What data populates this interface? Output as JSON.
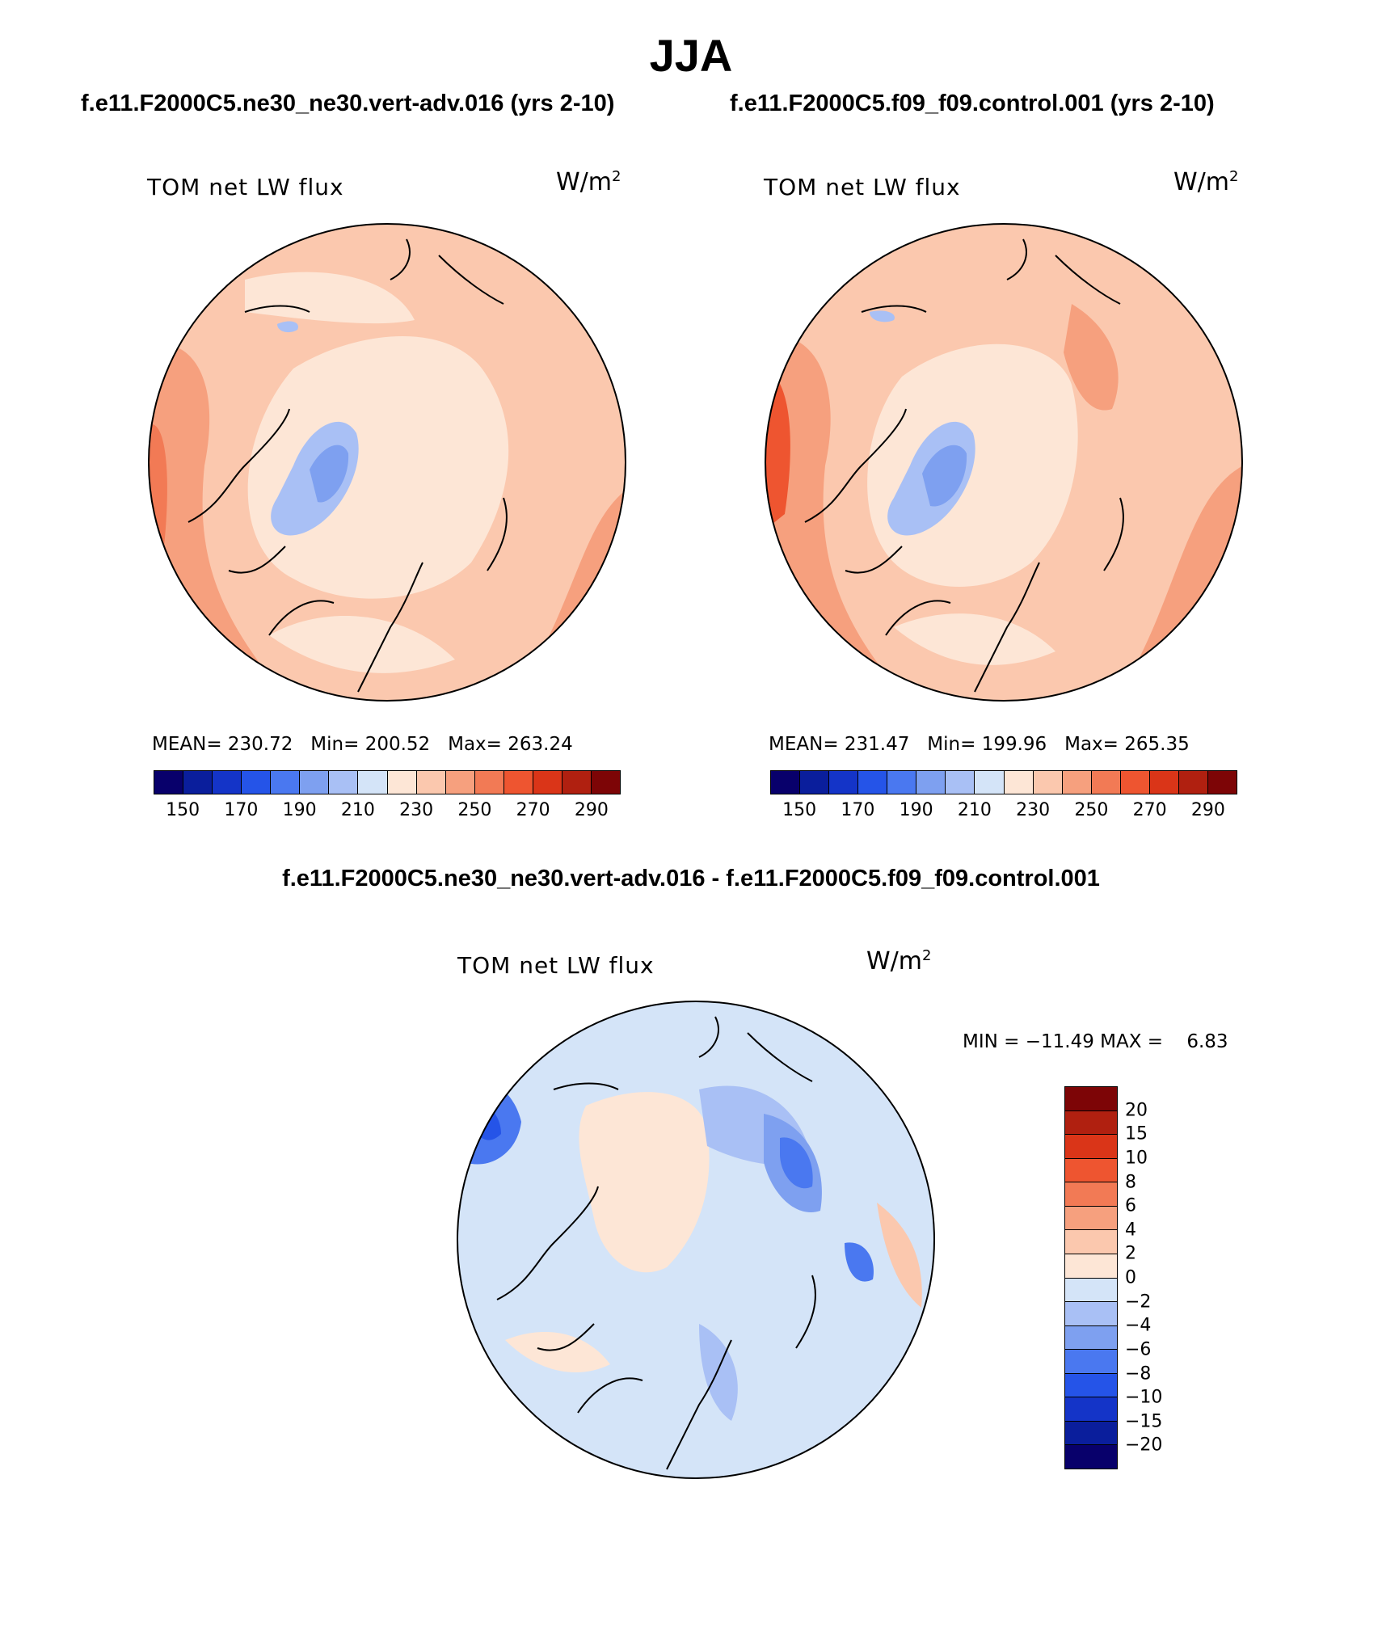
{
  "figure_title": "JJA",
  "panels": [
    {
      "case_title": "f.e11.F2000C5.ne30_ne30.vert-adv.016 (yrs 2-10)",
      "variable": "TOM net LW flux",
      "units": "W/m",
      "units_sup": "2",
      "stats": "MEAN= 230.72   Min= 200.52   Max= 263.24"
    },
    {
      "case_title": "f.e11.F2000C5.f09_f09.control.001 (yrs 2-10)",
      "variable": "TOM net LW flux",
      "units": "W/m",
      "units_sup": "2",
      "stats": "MEAN= 231.47   Min= 199.96   Max= 265.35"
    }
  ],
  "abs_colorbar": {
    "ticks": [
      "150",
      "170",
      "190",
      "210",
      "230",
      "250",
      "270",
      "290"
    ],
    "colors": [
      "#08006b",
      "#0a1e9c",
      "#1434c8",
      "#2554e8",
      "#4a78f0",
      "#7ea0f0",
      "#a9c0f5",
      "#d4e4f8",
      "#fde6d6",
      "#fbc8ae",
      "#f6a07e",
      "#f27a55",
      "#ee5530",
      "#da3518",
      "#b02010",
      "#7d0506"
    ]
  },
  "diff_panel": {
    "title": "f.e11.F2000C5.ne30_ne30.vert-adv.016 - f.e11.F2000C5.f09_f09.control.001",
    "variable": "TOM net LW flux",
    "units": "W/m",
    "units_sup": "2",
    "minmax": "MIN = −11.49 MAX =    6.83",
    "labels": [
      "20",
      "15",
      "10",
      "8",
      "6",
      "4",
      "2",
      "0",
      "−2",
      "−4",
      "−6",
      "−8",
      "−10",
      "−15",
      "−20"
    ],
    "colors": [
      "#7d0506",
      "#b02010",
      "#da3518",
      "#ee5530",
      "#f27a55",
      "#f6a07e",
      "#fbc8ae",
      "#fde6d6",
      "#d4e4f8",
      "#a9c0f5",
      "#7ea0f0",
      "#4a78f0",
      "#2554e8",
      "#1434c8",
      "#0a1e9c",
      "#08006b"
    ]
  }
}
